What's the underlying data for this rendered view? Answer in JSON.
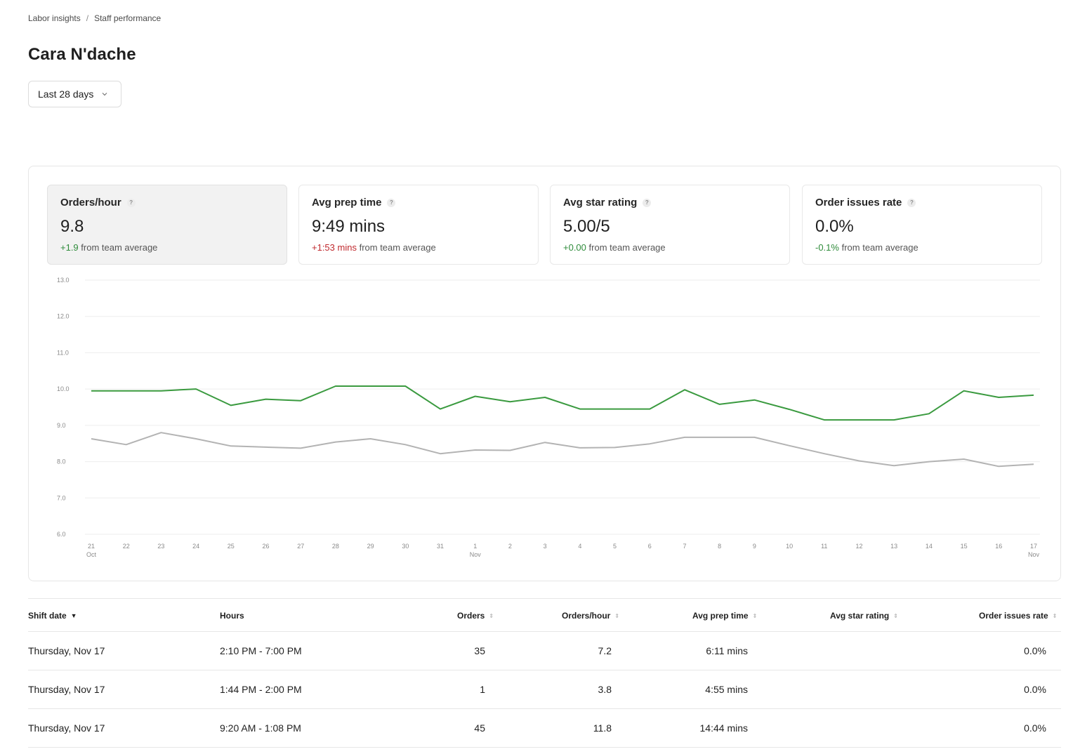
{
  "breadcrumb": {
    "items": [
      "Labor insights",
      "Staff performance"
    ],
    "separator": "/"
  },
  "page": {
    "title": "Cara N'dache"
  },
  "filter": {
    "selected": "Last 28 days"
  },
  "metrics": [
    {
      "label": "Orders/hour",
      "value": "9.8",
      "delta": "+1.9",
      "delta_suffix": "from team average",
      "delta_color": "#2e8b3a",
      "selected": true
    },
    {
      "label": "Avg prep time",
      "value": "9:49 mins",
      "delta": "+1:53 mins",
      "delta_suffix": "from team average",
      "delta_color": "#c0282d",
      "selected": false
    },
    {
      "label": "Avg star rating",
      "value": "5.00/5",
      "delta": "+0.00",
      "delta_suffix": "from team average",
      "delta_color": "#2e8b3a",
      "selected": false
    },
    {
      "label": "Order issues rate",
      "value": "0.0%",
      "delta": "-0.1%",
      "delta_suffix": "from team average",
      "delta_color": "#2e8b3a",
      "selected": false
    }
  ],
  "chart_data": {
    "type": "line",
    "x": [
      "21",
      "22",
      "23",
      "24",
      "25",
      "26",
      "27",
      "28",
      "29",
      "30",
      "31",
      "1",
      "2",
      "3",
      "4",
      "5",
      "6",
      "7",
      "8",
      "9",
      "10",
      "11",
      "12",
      "13",
      "14",
      "15",
      "16",
      "17"
    ],
    "x_sublabels": {
      "0": "Oct",
      "11": "Nov",
      "27": "Nov"
    },
    "ylim": [
      6.0,
      13.0
    ],
    "yticks": [
      "13.0",
      "12.0",
      "11.0",
      "10.0",
      "9.0",
      "8.0",
      "7.0",
      "6.0"
    ],
    "grid": true,
    "series": [
      {
        "color": "#3a9a3f",
        "values": [
          9.95,
          9.95,
          9.95,
          10.0,
          9.55,
          9.72,
          9.68,
          10.08,
          10.08,
          10.08,
          9.45,
          9.8,
          9.65,
          9.77,
          9.45,
          9.45,
          9.45,
          9.98,
          9.58,
          9.7,
          9.44,
          9.15,
          9.15,
          9.15,
          9.32,
          9.95,
          9.77,
          9.83
        ]
      },
      {
        "color": "#b3b3b3",
        "values": [
          8.63,
          8.47,
          8.8,
          8.63,
          8.43,
          8.4,
          8.37,
          8.54,
          8.63,
          8.47,
          8.22,
          8.32,
          8.31,
          8.53,
          8.38,
          8.39,
          8.49,
          8.67,
          8.67,
          8.67,
          8.44,
          8.22,
          8.02,
          7.89,
          8.0,
          8.07,
          7.87,
          7.93
        ]
      }
    ]
  },
  "table": {
    "columns": [
      "Shift date",
      "Hours",
      "Orders",
      "Orders/hour",
      "Avg prep time",
      "Avg star rating",
      "Order issues rate"
    ],
    "rows": [
      [
        "Thursday, Nov 17",
        "2:10 PM - 7:00 PM",
        "35",
        "7.2",
        "6:11 mins",
        "",
        "0.0%"
      ],
      [
        "Thursday, Nov 17",
        "1:44 PM - 2:00 PM",
        "1",
        "3.8",
        "4:55 mins",
        "",
        "0.0%"
      ],
      [
        "Thursday, Nov 17",
        "9:20 AM - 1:08 PM",
        "45",
        "11.8",
        "14:44 mins",
        "",
        "0.0%"
      ]
    ]
  }
}
